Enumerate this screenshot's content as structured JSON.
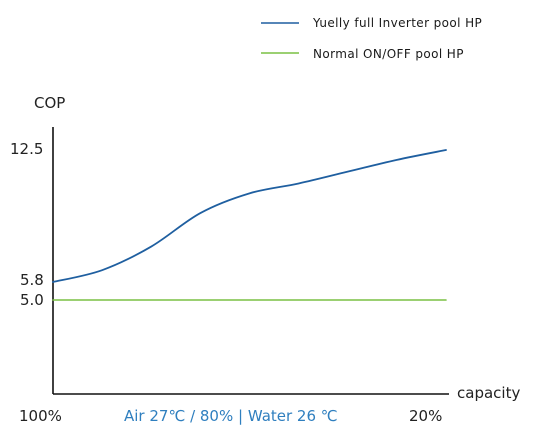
{
  "chart_data": {
    "type": "line",
    "ylabel": "COP",
    "xlabel": "capacity",
    "x_tick_labels": [
      "100%",
      "20%"
    ],
    "condition_label": "Air 27℃  / 80% | Water 26 ℃",
    "y_tick_labels": [
      "12.5",
      "5.8",
      "5.0"
    ],
    "x": [
      100,
      90,
      80,
      70,
      60,
      50,
      40,
      30,
      20
    ],
    "series": [
      {
        "name": "Yuelly full Inverter pool HP",
        "color": "#1f5fa0",
        "values": [
          5.8,
          6.4,
          7.6,
          9.3,
          10.3,
          10.8,
          11.4,
          12.0,
          12.5
        ]
      },
      {
        "name": "Normal ON/OFF pool HP",
        "color": "#7ac143",
        "values": [
          5.0,
          5.0,
          5.0,
          5.0,
          5.0,
          5.0,
          5.0,
          5.0,
          5.0
        ]
      }
    ],
    "condition_color": "#2f7fbf",
    "legend_position": "top-right",
    "grid": false
  }
}
